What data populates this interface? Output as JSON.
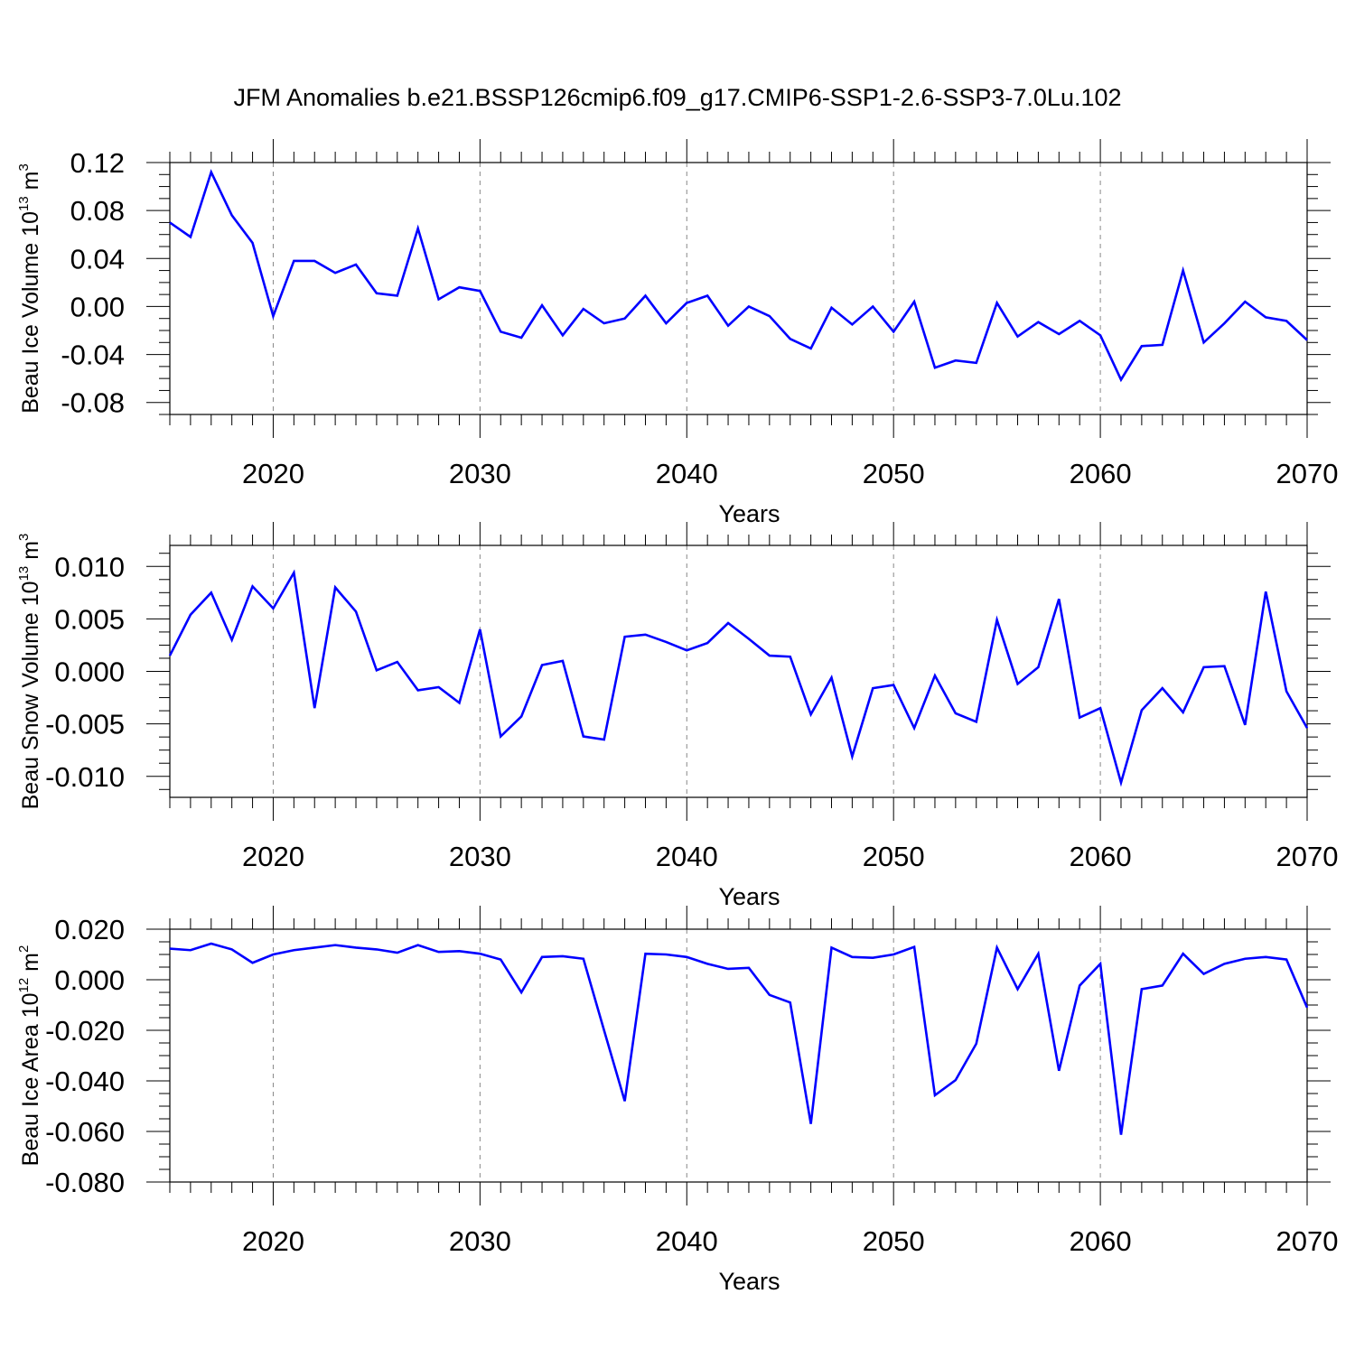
{
  "title": "JFM Anomalies b.e21.BSSP126cmip6.f09_g17.CMIP6-SSP1-2.6-SSP3-7.0Lu.102",
  "line_color": "#0000ff",
  "chart_data": [
    {
      "type": "line",
      "ylabel": "Beau Ice Volume 10",
      "ylabel_exp": "13",
      "ylabel_unit": " m",
      "ylabel_unit_exp": "3",
      "xlabel": "Years",
      "xlim": [
        2015,
        2070
      ],
      "ylim": [
        -0.09,
        0.12
      ],
      "yticks": [
        -0.08,
        -0.04,
        0.0,
        0.04,
        0.08,
        0.12
      ],
      "ytick_labels": [
        "-0.08",
        "-0.04",
        "0.00",
        "0.04",
        "0.08",
        "0.12"
      ],
      "xticks": [
        2020,
        2030,
        2040,
        2050,
        2060,
        2070
      ],
      "xtick_labels": [
        "2020",
        "2030",
        "2040",
        "2050",
        "2060",
        "2070"
      ],
      "x_start": 2015,
      "values": [
        0.07,
        0.058,
        0.112,
        0.076,
        0.053,
        -0.008,
        0.038,
        0.038,
        0.028,
        0.035,
        0.011,
        0.009,
        0.065,
        0.006,
        0.016,
        0.013,
        -0.021,
        -0.026,
        0.001,
        -0.024,
        -0.002,
        -0.014,
        -0.01,
        0.009,
        -0.014,
        0.003,
        0.009,
        -0.016,
        0.0,
        -0.008,
        -0.027,
        -0.035,
        -0.001,
        -0.015,
        0.0,
        -0.021,
        0.004,
        -0.051,
        -0.045,
        -0.047,
        0.003,
        -0.025,
        -0.013,
        -0.023,
        -0.012,
        -0.024,
        -0.061,
        -0.033,
        -0.032,
        0.03,
        -0.03,
        -0.014,
        0.004,
        -0.009,
        -0.012,
        -0.028
      ]
    },
    {
      "type": "line",
      "ylabel": "Beau Snow Volume 10",
      "ylabel_exp": "13",
      "ylabel_unit": " m",
      "ylabel_unit_exp": "3",
      "xlabel": "Years",
      "xlim": [
        2015,
        2070
      ],
      "ylim": [
        -0.012,
        0.012
      ],
      "yticks": [
        -0.01,
        -0.005,
        0.0,
        0.005,
        0.01
      ],
      "ytick_labels": [
        "-0.010",
        "-0.005",
        "0.000",
        "0.005",
        "0.010"
      ],
      "xticks": [
        2020,
        2030,
        2040,
        2050,
        2060,
        2070
      ],
      "xtick_labels": [
        "2020",
        "2030",
        "2040",
        "2050",
        "2060",
        "2070"
      ],
      "x_start": 2015,
      "values": [
        0.0015,
        0.0054,
        0.0075,
        0.003,
        0.0081,
        0.006,
        0.0094,
        -0.0035,
        0.008,
        0.0057,
        0.0001,
        0.0009,
        -0.0018,
        -0.0015,
        -0.003,
        0.004,
        -0.0062,
        -0.0043,
        0.0006,
        0.001,
        -0.0062,
        -0.0065,
        0.0033,
        0.0035,
        0.0028,
        0.002,
        0.0027,
        0.0046,
        0.0031,
        0.0015,
        0.0014,
        -0.0041,
        -0.0006,
        -0.0081,
        -0.0016,
        -0.0013,
        -0.0054,
        -0.0004,
        -0.004,
        -0.0048,
        0.0049,
        -0.0012,
        0.0004,
        0.0069,
        -0.0044,
        -0.0035,
        -0.0106,
        -0.0037,
        -0.0016,
        -0.0039,
        0.0004,
        0.0005,
        -0.0051,
        0.0076,
        -0.0019,
        -0.0054
      ]
    },
    {
      "type": "line",
      "ylabel": "Beau Ice Area 10",
      "ylabel_exp": "12",
      "ylabel_unit": " m",
      "ylabel_unit_exp": "2",
      "xlabel": "Years",
      "xlim": [
        2015,
        2070
      ],
      "ylim": [
        -0.08,
        0.02
      ],
      "yticks": [
        -0.08,
        -0.06,
        -0.04,
        -0.02,
        0.0,
        0.02
      ],
      "ytick_labels": [
        "-0.080",
        "-0.060",
        "-0.040",
        "-0.020",
        "0.000",
        "0.020"
      ],
      "xticks": [
        2020,
        2030,
        2040,
        2050,
        2060,
        2070
      ],
      "xtick_labels": [
        "2020",
        "2030",
        "2040",
        "2050",
        "2060",
        "2070"
      ],
      "x_start": 2015,
      "values": [
        0.0123,
        0.0117,
        0.0143,
        0.012,
        0.0067,
        0.01,
        0.0117,
        0.0127,
        0.0137,
        0.0127,
        0.012,
        0.0107,
        0.0137,
        0.011,
        0.0113,
        0.0103,
        0.008,
        -0.005,
        0.009,
        0.0093,
        0.0083,
        -0.02,
        -0.048,
        0.0103,
        0.01,
        0.009,
        0.0063,
        0.0043,
        0.0047,
        -0.006,
        -0.009,
        -0.057,
        0.0127,
        0.009,
        0.0087,
        0.01,
        0.013,
        -0.0457,
        -0.0397,
        -0.0253,
        0.0127,
        -0.0037,
        0.0103,
        -0.036,
        -0.0023,
        0.0063,
        -0.0613,
        -0.0037,
        -0.0023,
        0.0103,
        0.0023,
        0.0063,
        0.0083,
        0.009,
        0.008,
        -0.011
      ]
    }
  ]
}
